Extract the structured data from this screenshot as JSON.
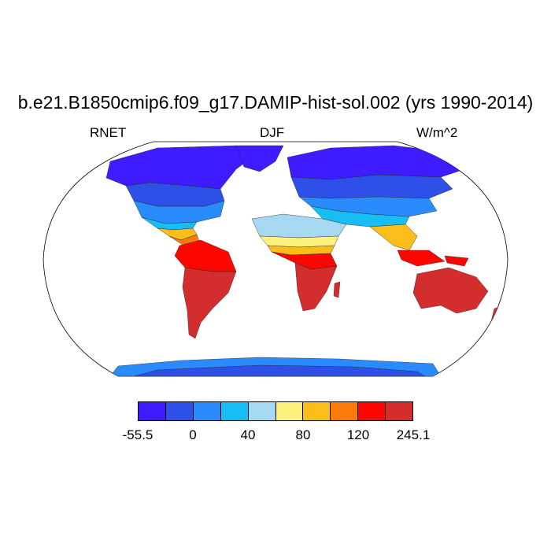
{
  "title": "b.e21.B1850cmip6.f09_g17.DAMIP-hist-sol.002 (yrs 1990-2014)",
  "left_label": "RNET",
  "center_label": "DJF",
  "right_label": "W/m^2",
  "colorbar": {
    "colors": [
      "#3f1cff",
      "#2e50e8",
      "#2a8bff",
      "#17bdf5",
      "#a7d8f2",
      "#fdf27d",
      "#fbbd1a",
      "#fb7a0a",
      "#fb0700",
      "#d32d2d"
    ],
    "tick_labels": [
      "-55.5",
      "0",
      "40",
      "80",
      "120",
      "245.1"
    ]
  },
  "map": {
    "projection": "Robinson",
    "ocean_color": "#ffffff",
    "outline_color": "#000000"
  }
}
